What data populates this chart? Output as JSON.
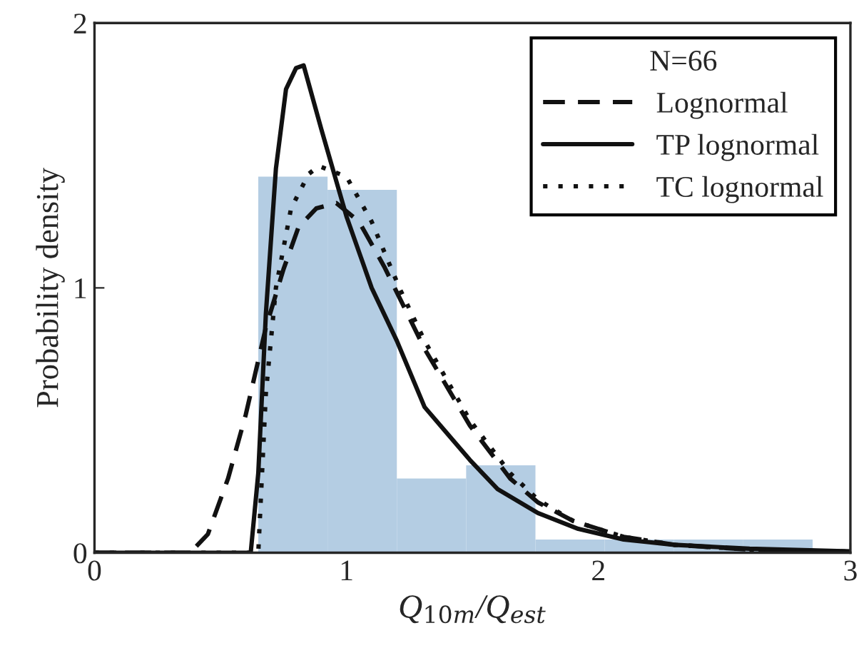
{
  "chart_data": {
    "type": "histogram",
    "xlabel": "Q$_{10m}$/Q$_{est}$",
    "ylabel": "Probability density",
    "legend_title": "N=66",
    "bins": [
      0.65,
      0.925,
      1.2,
      1.475,
      1.75,
      2.025,
      2.3,
      2.575,
      2.85
    ],
    "values": [
      1.42,
      1.37,
      0.28,
      0.33,
      0.05,
      0.05,
      0.05,
      0.05
    ],
    "color": "#b4cde3",
    "series": [
      {
        "name": "Lognormal",
        "type": "line",
        "line_style": "dashed",
        "color": "#111111",
        "x": [
          0,
          0.38,
          0.45,
          0.53,
          0.6,
          0.68,
          0.75,
          0.81,
          0.88,
          0.96,
          1.05,
          1.15,
          1.31,
          1.49,
          1.65,
          1.76,
          1.9,
          2.1,
          2.3,
          2.6,
          3.0
        ],
        "values": [
          0,
          0,
          0.07,
          0.28,
          0.52,
          0.85,
          1.07,
          1.23,
          1.3,
          1.32,
          1.25,
          1.08,
          0.77,
          0.48,
          0.28,
          0.19,
          0.12,
          0.06,
          0.03,
          0.012,
          0.004
        ]
      },
      {
        "name": "TP lognormal",
        "type": "line",
        "line_style": "solid",
        "color": "#111111",
        "x": [
          0,
          0.62,
          0.65,
          0.68,
          0.72,
          0.76,
          0.8,
          0.83,
          0.9,
          1.0,
          1.1,
          1.2,
          1.31,
          1.4,
          1.49,
          1.6,
          1.76,
          1.92,
          2.1,
          2.3,
          2.6,
          3.0
        ],
        "values": [
          0,
          0,
          0.3,
          0.9,
          1.45,
          1.75,
          1.83,
          1.84,
          1.6,
          1.27,
          1.0,
          0.8,
          0.55,
          0.45,
          0.35,
          0.24,
          0.15,
          0.09,
          0.05,
          0.03,
          0.015,
          0.005
        ]
      },
      {
        "name": "TC lognormal",
        "type": "line",
        "line_style": "dotted",
        "color": "#111111",
        "x": [
          0,
          0.65,
          0.68,
          0.72,
          0.78,
          0.85,
          0.89,
          1.0,
          1.1,
          1.21,
          1.31,
          1.49,
          1.65,
          1.76,
          1.9,
          2.1,
          2.3,
          2.6,
          3.0
        ],
        "values": [
          0,
          0,
          0.6,
          1.0,
          1.3,
          1.43,
          1.46,
          1.42,
          1.25,
          1.0,
          0.8,
          0.5,
          0.3,
          0.2,
          0.12,
          0.06,
          0.03,
          0.012,
          0.004
        ]
      }
    ],
    "xlim": [
      0,
      3
    ],
    "ylim": [
      0,
      2
    ],
    "xticks": [
      0,
      1,
      2,
      3
    ],
    "yticks": [
      0,
      1,
      2
    ],
    "grid": false,
    "legend": "top right"
  }
}
